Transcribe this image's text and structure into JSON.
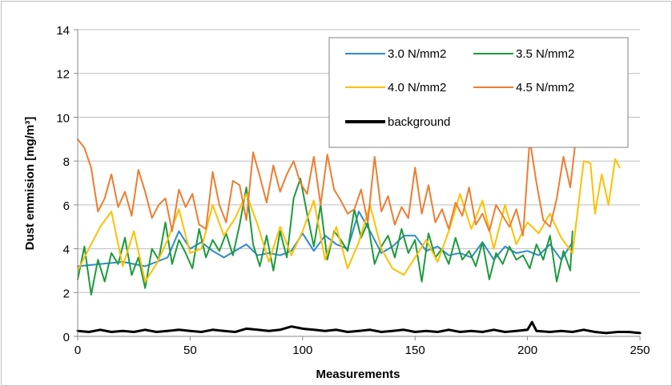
{
  "chart_data": {
    "type": "line",
    "xlabel": "Measurements",
    "ylabel": "Dust emmision [mg/m³]",
    "xlim": [
      0,
      250
    ],
    "ylim": [
      0,
      14
    ],
    "xticks": [
      0,
      50,
      100,
      150,
      200,
      250
    ],
    "yticks": [
      0,
      2,
      4,
      6,
      8,
      10,
      12,
      14
    ],
    "grid": "horizontal",
    "legend_position": "top-right",
    "series": [
      {
        "name": "3.0 N/mm2",
        "color": "#2e8bc9",
        "stroke": 2,
        "x": [
          0,
          10,
          20,
          30,
          40,
          45,
          50,
          55,
          60,
          65,
          70,
          75,
          80,
          85,
          90,
          95,
          100,
          105,
          110,
          115,
          120,
          125,
          130,
          135,
          140,
          145,
          150,
          155,
          160,
          165,
          170,
          175,
          180,
          185,
          190,
          195,
          200,
          205,
          210,
          215,
          220
        ],
        "y": [
          3.2,
          3.3,
          3.4,
          3.2,
          3.6,
          4.8,
          4.0,
          4.3,
          3.9,
          3.6,
          3.9,
          4.2,
          3.7,
          3.8,
          3.7,
          3.9,
          4.7,
          3.9,
          4.6,
          4.2,
          4.0,
          5.7,
          4.8,
          3.8,
          4.1,
          4.6,
          4.6,
          3.9,
          4.1,
          3.7,
          3.8,
          3.6,
          4.3,
          3.5,
          4.1,
          3.8,
          3.9,
          3.7,
          4.2,
          3.5,
          4.3
        ]
      },
      {
        "name": "3.5 N/mm2",
        "color": "#1d9a3c",
        "stroke": 2,
        "x": [
          0,
          3,
          6,
          9,
          12,
          15,
          18,
          21,
          24,
          27,
          30,
          33,
          36,
          39,
          42,
          45,
          48,
          51,
          54,
          57,
          60,
          63,
          66,
          69,
          72,
          75,
          78,
          81,
          84,
          87,
          90,
          93,
          96,
          99,
          102,
          105,
          108,
          111,
          114,
          117,
          120,
          123,
          126,
          129,
          132,
          135,
          138,
          141,
          144,
          147,
          150,
          153,
          156,
          159,
          162,
          165,
          168,
          171,
          174,
          177,
          180,
          183,
          186,
          189,
          192,
          195,
          198,
          201,
          204,
          207,
          210,
          213,
          216,
          219,
          220
        ],
        "y": [
          2.6,
          4.1,
          1.9,
          3.5,
          2.5,
          3.8,
          3.3,
          4.5,
          2.8,
          3.6,
          2.2,
          4.0,
          3.5,
          5.2,
          3.3,
          4.4,
          3.8,
          3.1,
          4.9,
          3.6,
          4.4,
          3.9,
          4.7,
          3.7,
          5.1,
          6.8,
          4.2,
          3.2,
          4.6,
          3.0,
          4.8,
          3.6,
          6.3,
          7.2,
          5.6,
          4.1,
          6.0,
          3.5,
          4.8,
          4.4,
          3.9,
          5.8,
          4.5,
          5.2,
          3.3,
          4.1,
          4.6,
          3.6,
          4.9,
          3.8,
          4.4,
          2.5,
          4.7,
          3.6,
          4.0,
          3.3,
          4.5,
          3.5,
          3.9,
          3.2,
          4.3,
          2.6,
          3.8,
          3.3,
          4.1,
          3.5,
          3.7,
          3.1,
          4.2,
          3.5,
          4.6,
          2.5,
          3.9,
          3.0,
          4.8
        ]
      },
      {
        "name": "4.0 N/mm2",
        "color": "#ffc000",
        "stroke": 2,
        "x": [
          0,
          5,
          10,
          15,
          20,
          25,
          30,
          35,
          40,
          45,
          50,
          55,
          60,
          65,
          70,
          75,
          80,
          85,
          90,
          95,
          100,
          105,
          110,
          115,
          120,
          125,
          130,
          135,
          140,
          145,
          150,
          155,
          160,
          165,
          170,
          175,
          180,
          185,
          190,
          195,
          200,
          205,
          210,
          215,
          220,
          225,
          228,
          230,
          233,
          236,
          239,
          241
        ],
        "y": [
          3.0,
          4.0,
          5.0,
          5.7,
          3.2,
          4.8,
          2.5,
          3.3,
          4.4,
          5.8,
          3.8,
          4.0,
          6.0,
          4.6,
          5.4,
          6.5,
          5.1,
          3.4,
          5.0,
          3.7,
          4.8,
          6.2,
          3.5,
          5.0,
          3.1,
          4.3,
          6.0,
          4.0,
          3.1,
          2.8,
          3.6,
          4.4,
          3.4,
          4.8,
          6.5,
          4.9,
          6.2,
          4.0,
          6.0,
          4.2,
          5.2,
          4.7,
          5.6,
          4.5,
          3.8,
          8.0,
          7.9,
          5.6,
          7.4,
          6.0,
          8.1,
          7.7
        ]
      },
      {
        "name": "4.5 N/mm2",
        "color": "#ed7d31",
        "stroke": 2,
        "x": [
          0,
          3,
          6,
          9,
          12,
          15,
          18,
          21,
          24,
          27,
          30,
          33,
          36,
          39,
          42,
          45,
          48,
          51,
          54,
          57,
          60,
          63,
          66,
          69,
          72,
          75,
          78,
          81,
          84,
          87,
          90,
          93,
          96,
          99,
          102,
          105,
          108,
          111,
          114,
          117,
          120,
          123,
          126,
          129,
          132,
          135,
          138,
          141,
          144,
          147,
          150,
          153,
          156,
          159,
          162,
          165,
          168,
          171,
          174,
          177,
          180,
          183,
          186,
          189,
          192,
          195,
          198,
          201,
          204,
          207,
          210,
          213,
          216,
          219,
          222,
          224
        ],
        "y": [
          9.0,
          8.6,
          7.7,
          5.7,
          6.3,
          7.4,
          5.9,
          6.6,
          5.5,
          7.6,
          6.6,
          5.4,
          6.0,
          6.3,
          4.8,
          6.7,
          5.9,
          6.5,
          5.1,
          4.9,
          7.5,
          6.0,
          5.2,
          7.1,
          6.9,
          5.3,
          8.4,
          7.3,
          6.1,
          7.8,
          6.6,
          7.4,
          8.0,
          7.0,
          6.5,
          8.2,
          6.0,
          8.3,
          6.7,
          6.2,
          5.6,
          5.8,
          6.7,
          5.2,
          8.2,
          5.7,
          6.4,
          5.1,
          5.9,
          5.4,
          7.7,
          5.6,
          6.9,
          5.2,
          5.8,
          4.9,
          6.1,
          5.5,
          6.8,
          5.1,
          5.6,
          4.8,
          6.0,
          5.5,
          5.0,
          5.8,
          4.6,
          9.0,
          7.0,
          5.3,
          5.0,
          6.3,
          8.2,
          6.8,
          9.5,
          9.3
        ]
      },
      {
        "name": "background",
        "color": "#000000",
        "stroke": 3,
        "x": [
          0,
          5,
          10,
          15,
          20,
          25,
          30,
          35,
          40,
          45,
          50,
          55,
          60,
          65,
          70,
          75,
          80,
          85,
          90,
          95,
          100,
          105,
          110,
          115,
          120,
          125,
          130,
          135,
          140,
          145,
          150,
          155,
          160,
          165,
          170,
          175,
          180,
          185,
          190,
          195,
          200,
          202,
          204,
          210,
          215,
          220,
          225,
          230,
          235,
          240,
          245,
          250
        ],
        "y": [
          0.25,
          0.2,
          0.3,
          0.2,
          0.25,
          0.2,
          0.3,
          0.2,
          0.25,
          0.3,
          0.25,
          0.2,
          0.3,
          0.25,
          0.2,
          0.35,
          0.3,
          0.25,
          0.3,
          0.45,
          0.35,
          0.3,
          0.25,
          0.3,
          0.2,
          0.25,
          0.3,
          0.2,
          0.25,
          0.3,
          0.2,
          0.25,
          0.2,
          0.3,
          0.2,
          0.25,
          0.2,
          0.3,
          0.2,
          0.25,
          0.3,
          0.65,
          0.25,
          0.2,
          0.25,
          0.2,
          0.3,
          0.2,
          0.15,
          0.2,
          0.2,
          0.15
        ]
      }
    ]
  }
}
